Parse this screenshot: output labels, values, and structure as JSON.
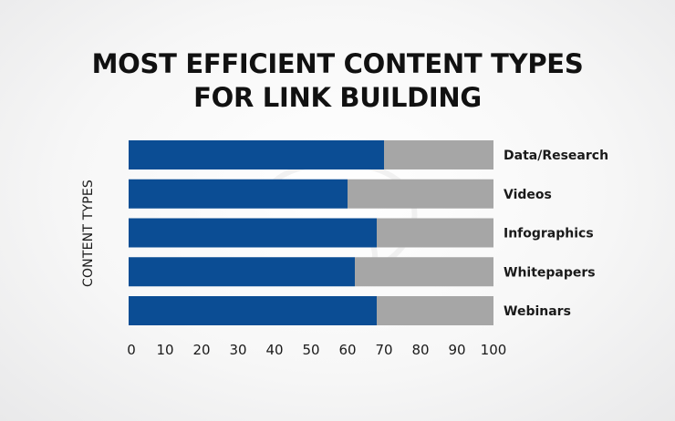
{
  "chart_data": {
    "type": "bar",
    "orientation": "horizontal",
    "stacked": true,
    "title_lines": [
      "MOST EFFICIENT CONTENT TYPES",
      "FOR LINK BUILDING"
    ],
    "ylabel": "CONTENT TYPES",
    "xlabel": "",
    "categories": [
      "Data/Research",
      "Videos",
      "Infographics",
      "Whitepapers",
      "Webinars"
    ],
    "series": [
      {
        "values": [
          70,
          60,
          68,
          62,
          68
        ],
        "color": "#0b4d94"
      },
      {
        "values": [
          30,
          40,
          32,
          38,
          32
        ],
        "color": "#a6a6a6"
      }
    ],
    "xlim": [
      0,
      100
    ],
    "xticks": [
      0,
      10,
      20,
      30,
      40,
      50,
      60,
      70,
      80,
      90,
      100
    ],
    "grid": false,
    "legend": "none"
  }
}
